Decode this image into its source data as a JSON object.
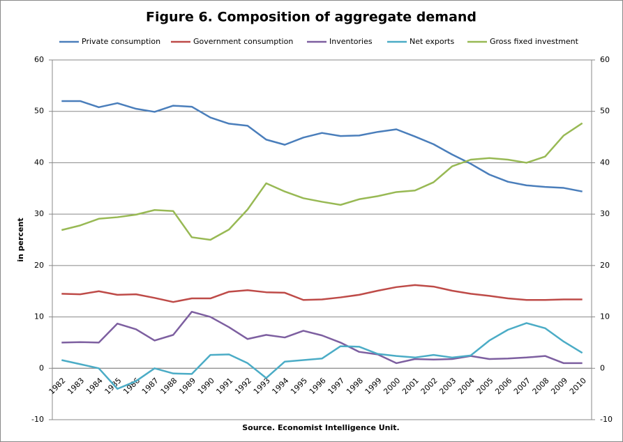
{
  "chart_data": {
    "type": "line",
    "title": "Figure 6. Composition of aggregate demand",
    "x_label": "Source. Economist Intelligence Unit.",
    "y_label": "in percent",
    "categories": [
      "1982",
      "1983",
      "1984",
      "1985",
      "1986",
      "1987",
      "1988",
      "1989",
      "1990",
      "1991",
      "1992",
      "1993",
      "1994",
      "1995",
      "1996",
      "1997",
      "1998",
      "1999",
      "2000",
      "2001",
      "2002",
      "2003",
      "2004",
      "2005",
      "2006",
      "2007",
      "2008",
      "2009",
      "2010"
    ],
    "series": [
      {
        "name": "Private consumption",
        "color": "#4a7ebb",
        "values": [
          52,
          52,
          50.8,
          51.6,
          50.5,
          49.9,
          51.1,
          50.9,
          48.8,
          47.6,
          47.2,
          44.5,
          43.5,
          44.9,
          45.8,
          45.2,
          45.3,
          46,
          46.5,
          45.1,
          43.6,
          41.6,
          39.8,
          37.7,
          36.3,
          35.6,
          35.3,
          35.1,
          34.4
        ]
      },
      {
        "name": "Government consumption",
        "color": "#be4b48",
        "values": [
          14.5,
          14.4,
          15,
          14.3,
          14.4,
          13.7,
          12.9,
          13.6,
          13.6,
          14.9,
          15.2,
          14.8,
          14.7,
          13.3,
          13.4,
          13.8,
          14.3,
          15.1,
          15.8,
          16.2,
          15.9,
          15.1,
          14.5,
          14.1,
          13.6,
          13.3,
          13.3,
          13.4,
          13.4
        ]
      },
      {
        "name": "Inventories",
        "color": "#7d5fa0",
        "values": [
          5,
          5.1,
          5,
          8.7,
          7.6,
          5.4,
          6.5,
          11,
          10,
          8,
          5.7,
          6.5,
          6,
          7.3,
          6.4,
          5,
          3.2,
          2.7,
          1,
          1.8,
          1.7,
          1.8,
          2.4,
          1.8,
          1.9,
          2.1,
          2.4,
          1,
          1
        ]
      },
      {
        "name": "Net exports",
        "color": "#4bacc6",
        "values": [
          1.6,
          0.8,
          0,
          -4,
          -2.5,
          0,
          -1,
          -1.1,
          2.6,
          2.7,
          1,
          -1.9,
          1.3,
          1.6,
          1.9,
          4.3,
          4.2,
          2.8,
          2.4,
          2.1,
          2.6,
          2.1,
          2.5,
          5.4,
          7.5,
          8.8,
          7.8,
          5.2,
          3
        ]
      },
      {
        "name": "Gross fixed investment",
        "color": "#98b954",
        "values": [
          26.9,
          27.8,
          29.1,
          29.4,
          29.9,
          30.8,
          30.6,
          25.5,
          25,
          27,
          30.9,
          36,
          34.4,
          33.1,
          32.4,
          31.8,
          32.9,
          33.5,
          34.3,
          34.6,
          36.2,
          39.3,
          40.6,
          40.9,
          40.6,
          40,
          41.2,
          45.3,
          47.7
        ]
      }
    ],
    "ylim": [
      -10,
      60
    ],
    "yticks": [
      -10,
      0,
      10,
      20,
      30,
      40,
      50,
      60
    ],
    "y2lim": [
      -10,
      60
    ],
    "y2ticks": [
      -10,
      0,
      10,
      20,
      30,
      40,
      50,
      60
    ],
    "grid": true,
    "legend": "top"
  }
}
